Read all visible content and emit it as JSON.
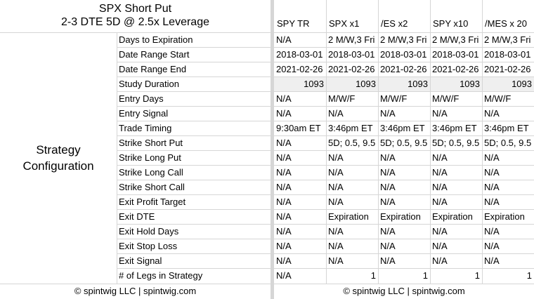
{
  "title_line1": "SPX Short Put",
  "title_line2": "2-3 DTE 5D @ 2.5x Leverage",
  "section_label": "Strategy Configuration",
  "columns": [
    "SPY TR",
    "SPX x1",
    "/ES x2",
    "SPY x10",
    "/MES x 20"
  ],
  "rows": [
    {
      "label": "Days to Expiration",
      "values": [
        "N/A",
        "2 M/W,3 Fri",
        "2 M/W,3 Fri",
        "2 M/W,3 Fri",
        "2 M/W,3 Fri"
      ],
      "align": "left",
      "shaded": false
    },
    {
      "label": "Date Range Start",
      "values": [
        "2018-03-01",
        "2018-03-01",
        "2018-03-01",
        "2018-03-01",
        "2018-03-01"
      ],
      "align": "left",
      "shaded": false
    },
    {
      "label": "Date Range End",
      "values": [
        "2021-02-26",
        "2021-02-26",
        "2021-02-26",
        "2021-02-26",
        "2021-02-26"
      ],
      "align": "left",
      "shaded": false
    },
    {
      "label": "Study Duration",
      "values": [
        "1093",
        "1093",
        "1093",
        "1093",
        "1093"
      ],
      "align": "right",
      "shaded": true
    },
    {
      "label": "Entry Days",
      "values": [
        "N/A",
        "M/W/F",
        "M/W/F",
        "M/W/F",
        "M/W/F"
      ],
      "align": "left",
      "shaded": false
    },
    {
      "label": "Entry Signal",
      "values": [
        "N/A",
        "N/A",
        "N/A",
        "N/A",
        "N/A"
      ],
      "align": "left",
      "shaded": false
    },
    {
      "label": "Trade Timing",
      "values": [
        "9:30am ET",
        "3:46pm ET",
        "3:46pm ET",
        "3:46pm ET",
        "3:46pm ET"
      ],
      "align": "left",
      "shaded": false
    },
    {
      "label": "Strike Short Put",
      "values": [
        "N/A",
        "5D; 0.5, 9.5",
        "5D; 0.5, 9.5",
        "5D; 0.5, 9.5",
        "5D; 0.5, 9.5"
      ],
      "align": "left",
      "shaded": false
    },
    {
      "label": "Strike Long Put",
      "values": [
        "N/A",
        "N/A",
        "N/A",
        "N/A",
        "N/A"
      ],
      "align": "left",
      "shaded": false
    },
    {
      "label": "Strike Long Call",
      "values": [
        "N/A",
        "N/A",
        "N/A",
        "N/A",
        "N/A"
      ],
      "align": "left",
      "shaded": false
    },
    {
      "label": "Strike Short Call",
      "values": [
        "N/A",
        "N/A",
        "N/A",
        "N/A",
        "N/A"
      ],
      "align": "left",
      "shaded": false
    },
    {
      "label": "Exit Profit Target",
      "values": [
        "N/A",
        "N/A",
        "N/A",
        "N/A",
        "N/A"
      ],
      "align": "left",
      "shaded": false
    },
    {
      "label": "Exit DTE",
      "values": [
        "N/A",
        "Expiration",
        "Expiration",
        "Expiration",
        "Expiration"
      ],
      "align": "left",
      "shaded": false
    },
    {
      "label": "Exit Hold Days",
      "values": [
        "N/A",
        "N/A",
        "N/A",
        "N/A",
        "N/A"
      ],
      "align": "left",
      "shaded": false
    },
    {
      "label": "Exit Stop Loss",
      "values": [
        "N/A",
        "N/A",
        "N/A",
        "N/A",
        "N/A"
      ],
      "align": "left",
      "shaded": false
    },
    {
      "label": "Exit Signal",
      "values": [
        "N/A",
        "N/A",
        "N/A",
        "N/A",
        "N/A"
      ],
      "align": "left",
      "shaded": false
    },
    {
      "label": "# of Legs in Strategy",
      "values": [
        "N/A",
        "1",
        "1",
        "1",
        "1"
      ],
      "align": "mixed",
      "shaded": false
    }
  ],
  "footer_left": "© spintwig LLC | spintwig.com",
  "footer_right": "© spintwig LLC | spintwig.com"
}
